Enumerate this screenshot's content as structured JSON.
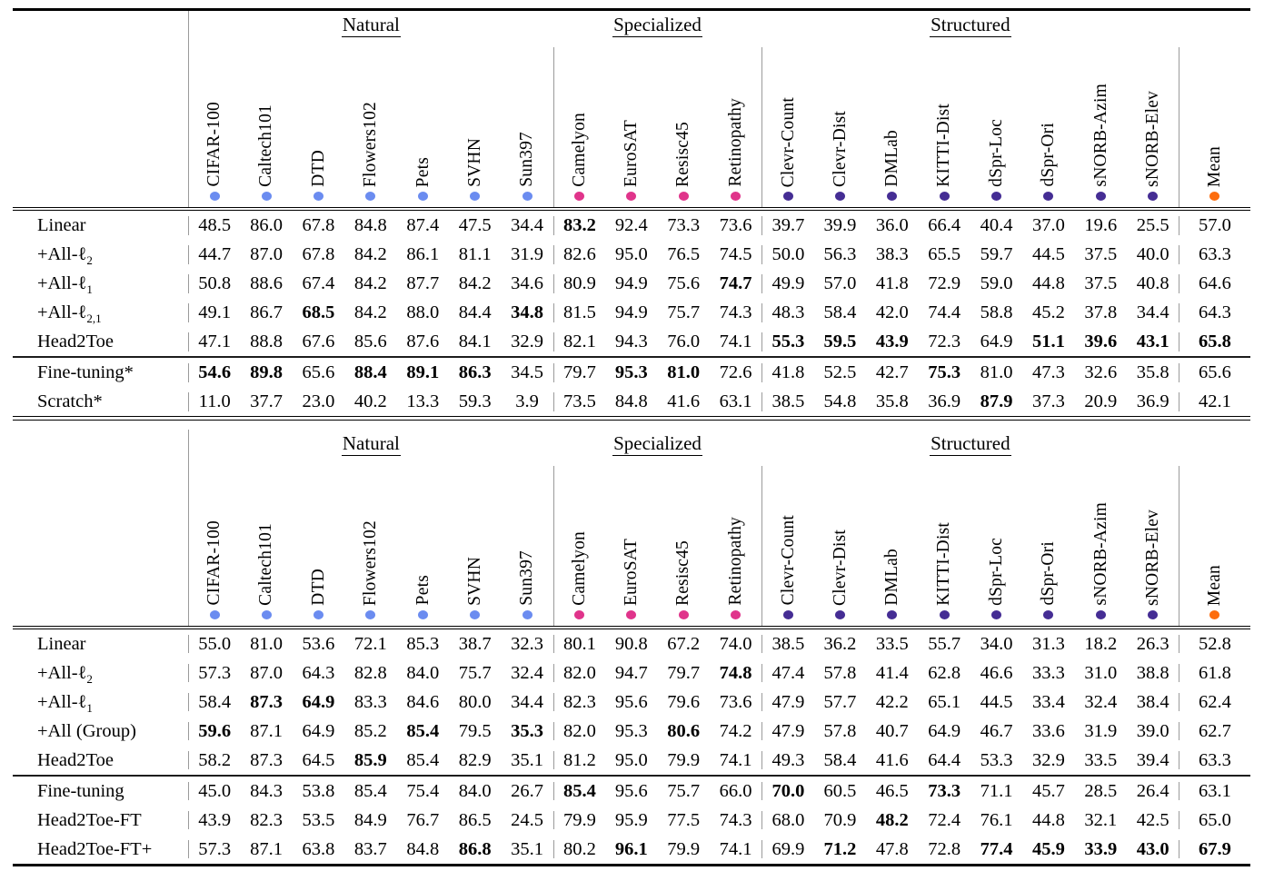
{
  "colors": {
    "natural": "#6b8cf0",
    "specialized": "#e0348b",
    "structured": "#452d94",
    "mean": "#fd6d0e",
    "rule": "#000000",
    "separator": "#9b9b9b"
  },
  "groups": [
    {
      "label": "Natural",
      "span": 7
    },
    {
      "label": "Specialized",
      "span": 4
    },
    {
      "label": "Structured",
      "span": 8
    }
  ],
  "columns": [
    {
      "name": "CIFAR-100",
      "group": "natural"
    },
    {
      "name": "Caltech101",
      "group": "natural"
    },
    {
      "name": "DTD",
      "group": "natural"
    },
    {
      "name": "Flowers102",
      "group": "natural"
    },
    {
      "name": "Pets",
      "group": "natural"
    },
    {
      "name": "SVHN",
      "group": "natural"
    },
    {
      "name": "Sun397",
      "group": "natural"
    },
    {
      "name": "Camelyon",
      "group": "specialized"
    },
    {
      "name": "EuroSAT",
      "group": "specialized"
    },
    {
      "name": "Resisc45",
      "group": "specialized"
    },
    {
      "name": "Retinopathy",
      "group": "specialized"
    },
    {
      "name": "Clevr-Count",
      "group": "structured"
    },
    {
      "name": "Clevr-Dist",
      "group": "structured"
    },
    {
      "name": "DMLab",
      "group": "structured"
    },
    {
      "name": "KITTI-Dist",
      "group": "structured"
    },
    {
      "name": "dSpr-Loc",
      "group": "structured"
    },
    {
      "name": "dSpr-Ori",
      "group": "structured"
    },
    {
      "name": "sNORB-Azim",
      "group": "structured"
    },
    {
      "name": "sNORB-Elev",
      "group": "structured"
    },
    {
      "name": "Mean",
      "group": "mean"
    }
  ],
  "layout": {
    "separator_columns": [
      0,
      7,
      11,
      19
    ],
    "divider_after_row": 4
  },
  "tables": [
    {
      "name": "top-table",
      "rows": [
        {
          "label": "Linear",
          "sub": "",
          "values": [
            "48.5",
            "86.0",
            "67.8",
            "84.8",
            "87.4",
            "47.5",
            "34.4",
            "83.2",
            "92.4",
            "73.3",
            "73.6",
            "39.7",
            "39.9",
            "36.0",
            "66.4",
            "40.4",
            "37.0",
            "19.6",
            "25.5",
            "57.0"
          ],
          "bold": [
            7
          ]
        },
        {
          "label": "+All-ℓ",
          "sub": "2",
          "values": [
            "44.7",
            "87.0",
            "67.8",
            "84.2",
            "86.1",
            "81.1",
            "31.9",
            "82.6",
            "95.0",
            "76.5",
            "74.5",
            "50.0",
            "56.3",
            "38.3",
            "65.5",
            "59.7",
            "44.5",
            "37.5",
            "40.0",
            "63.3"
          ],
          "bold": []
        },
        {
          "label": "+All-ℓ",
          "sub": "1",
          "values": [
            "50.8",
            "88.6",
            "67.4",
            "84.2",
            "87.7",
            "84.2",
            "34.6",
            "80.9",
            "94.9",
            "75.6",
            "74.7",
            "49.9",
            "57.0",
            "41.8",
            "72.9",
            "59.0",
            "44.8",
            "37.5",
            "40.8",
            "64.6"
          ],
          "bold": [
            10
          ]
        },
        {
          "label": "+All-ℓ",
          "sub": "2,1",
          "values": [
            "49.1",
            "86.7",
            "68.5",
            "84.2",
            "88.0",
            "84.4",
            "34.8",
            "81.5",
            "94.9",
            "75.7",
            "74.3",
            "48.3",
            "58.4",
            "42.0",
            "74.4",
            "58.8",
            "45.2",
            "37.8",
            "34.4",
            "64.3"
          ],
          "bold": [
            2,
            6
          ]
        },
        {
          "label": "Head2Toe",
          "sub": "",
          "values": [
            "47.1",
            "88.8",
            "67.6",
            "85.6",
            "87.6",
            "84.1",
            "32.9",
            "82.1",
            "94.3",
            "76.0",
            "74.1",
            "55.3",
            "59.5",
            "43.9",
            "72.3",
            "64.9",
            "51.1",
            "39.6",
            "43.1",
            "65.8"
          ],
          "bold": [
            11,
            12,
            13,
            16,
            17,
            18,
            19
          ]
        },
        {
          "label": "Fine-tuning*",
          "sub": "",
          "values": [
            "54.6",
            "89.8",
            "65.6",
            "88.4",
            "89.1",
            "86.3",
            "34.5",
            "79.7",
            "95.3",
            "81.0",
            "72.6",
            "41.8",
            "52.5",
            "42.7",
            "75.3",
            "81.0",
            "47.3",
            "32.6",
            "35.8",
            "65.6"
          ],
          "bold": [
            0,
            1,
            3,
            4,
            5,
            8,
            9,
            14
          ]
        },
        {
          "label": "Scratch*",
          "sub": "",
          "values": [
            "11.0",
            "37.7",
            "23.0",
            "40.2",
            "13.3",
            "59.3",
            "3.9",
            "73.5",
            "84.8",
            "41.6",
            "63.1",
            "38.5",
            "54.8",
            "35.8",
            "36.9",
            "87.9",
            "37.3",
            "20.9",
            "36.9",
            "42.1"
          ],
          "bold": [
            15
          ]
        }
      ]
    },
    {
      "name": "bottom-table",
      "rows": [
        {
          "label": "Linear",
          "sub": "",
          "values": [
            "55.0",
            "81.0",
            "53.6",
            "72.1",
            "85.3",
            "38.7",
            "32.3",
            "80.1",
            "90.8",
            "67.2",
            "74.0",
            "38.5",
            "36.2",
            "33.5",
            "55.7",
            "34.0",
            "31.3",
            "18.2",
            "26.3",
            "52.8"
          ],
          "bold": []
        },
        {
          "label": "+All-ℓ",
          "sub": "2",
          "values": [
            "57.3",
            "87.0",
            "64.3",
            "82.8",
            "84.0",
            "75.7",
            "32.4",
            "82.0",
            "94.7",
            "79.7",
            "74.8",
            "47.4",
            "57.8",
            "41.4",
            "62.8",
            "46.6",
            "33.3",
            "31.0",
            "38.8",
            "61.8"
          ],
          "bold": [
            10
          ]
        },
        {
          "label": "+All-ℓ",
          "sub": "1",
          "values": [
            "58.4",
            "87.3",
            "64.9",
            "83.3",
            "84.6",
            "80.0",
            "34.4",
            "82.3",
            "95.6",
            "79.6",
            "73.6",
            "47.9",
            "57.7",
            "42.2",
            "65.1",
            "44.5",
            "33.4",
            "32.4",
            "38.4",
            "62.4"
          ],
          "bold": [
            1,
            2
          ]
        },
        {
          "label": "+All (Group)",
          "sub": "",
          "values": [
            "59.6",
            "87.1",
            "64.9",
            "85.2",
            "85.4",
            "79.5",
            "35.3",
            "82.0",
            "95.3",
            "80.6",
            "74.2",
            "47.9",
            "57.8",
            "40.7",
            "64.9",
            "46.7",
            "33.6",
            "31.9",
            "39.0",
            "62.7"
          ],
          "bold": [
            0,
            4,
            6,
            9
          ]
        },
        {
          "label": "Head2Toe",
          "sub": "",
          "values": [
            "58.2",
            "87.3",
            "64.5",
            "85.9",
            "85.4",
            "82.9",
            "35.1",
            "81.2",
            "95.0",
            "79.9",
            "74.1",
            "49.3",
            "58.4",
            "41.6",
            "64.4",
            "53.3",
            "32.9",
            "33.5",
            "39.4",
            "63.3"
          ],
          "bold": [
            3
          ]
        },
        {
          "label": "Fine-tuning",
          "sub": "",
          "values": [
            "45.0",
            "84.3",
            "53.8",
            "85.4",
            "75.4",
            "84.0",
            "26.7",
            "85.4",
            "95.6",
            "75.7",
            "66.0",
            "70.0",
            "60.5",
            "46.5",
            "73.3",
            "71.1",
            "45.7",
            "28.5",
            "26.4",
            "63.1"
          ],
          "bold": [
            7,
            11,
            14
          ]
        },
        {
          "label": "Head2Toe-FT",
          "sub": "",
          "values": [
            "43.9",
            "82.3",
            "53.5",
            "84.9",
            "76.7",
            "86.5",
            "24.5",
            "79.9",
            "95.9",
            "77.5",
            "74.3",
            "68.0",
            "70.9",
            "48.2",
            "72.4",
            "76.1",
            "44.8",
            "32.1",
            "42.5",
            "65.0"
          ],
          "bold": [
            13
          ]
        },
        {
          "label": "Head2Toe-FT+",
          "sub": "",
          "values": [
            "57.3",
            "87.1",
            "63.8",
            "83.7",
            "84.8",
            "86.8",
            "35.1",
            "80.2",
            "96.1",
            "79.9",
            "74.1",
            "69.9",
            "71.2",
            "47.8",
            "72.8",
            "77.4",
            "45.9",
            "33.9",
            "43.0",
            "67.9"
          ],
          "bold": [
            5,
            8,
            12,
            15,
            16,
            17,
            18,
            19
          ]
        }
      ]
    }
  ]
}
